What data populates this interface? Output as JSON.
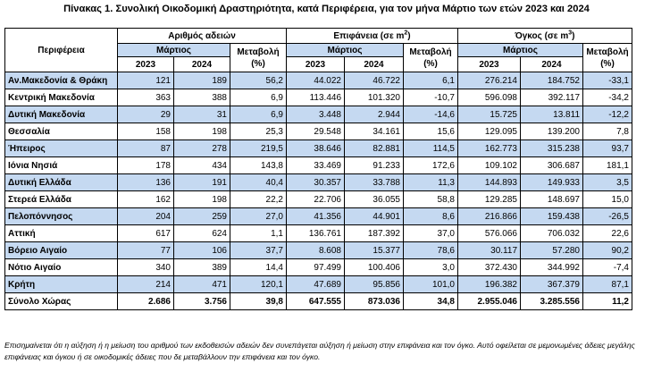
{
  "title": "Πίνακας 1. Συνολική Οικοδομική Δραστηριότητα, κατά  Περιφέρεια, για τον μήνα Μάρτιο των ετών 2023 και 2024",
  "headers": {
    "region": "Περιφέρεια",
    "permits": "Αριθμός αδειών",
    "area_prefix": "Επιφάνεια (σε m",
    "area_sup": "2",
    "area_suffix": ")",
    "volume_prefix": "Όγκος (σε m",
    "volume_sup": "3",
    "volume_suffix": ")",
    "month": "Μάρτιος",
    "change": "Μεταβολή",
    "change_unit": "(%)",
    "year1": "2023",
    "year2": "2024"
  },
  "rows": [
    {
      "region": "Αν.Μακεδονία & Θράκη",
      "p23": "121",
      "p24": "189",
      "pch": "56,2",
      "a23": "44.022",
      "a24": "46.722",
      "ach": "6,1",
      "v23": "276.214",
      "v24": "184.752",
      "vch": "-33,1"
    },
    {
      "region": "Κεντρική Μακεδονία",
      "p23": "363",
      "p24": "388",
      "pch": "6,9",
      "a23": "113.446",
      "a24": "101.320",
      "ach": "-10,7",
      "v23": "596.098",
      "v24": "392.117",
      "vch": "-34,2"
    },
    {
      "region": "Δυτική Μακεδονία",
      "p23": "29",
      "p24": "31",
      "pch": "6,9",
      "a23": "3.448",
      "a24": "2.944",
      "ach": "-14,6",
      "v23": "15.725",
      "v24": "13.811",
      "vch": "-12,2"
    },
    {
      "region": "Θεσσαλία",
      "p23": "158",
      "p24": "198",
      "pch": "25,3",
      "a23": "29.548",
      "a24": "34.161",
      "ach": "15,6",
      "v23": "129.095",
      "v24": "139.200",
      "vch": "7,8"
    },
    {
      "region": "Ήπειρος",
      "p23": "87",
      "p24": "278",
      "pch": "219,5",
      "a23": "38.646",
      "a24": "82.881",
      "ach": "114,5",
      "v23": "162.773",
      "v24": "315.238",
      "vch": "93,7"
    },
    {
      "region": "Ιόνια Νησιά",
      "p23": "178",
      "p24": "434",
      "pch": "143,8",
      "a23": "33.469",
      "a24": "91.233",
      "ach": "172,6",
      "v23": "109.102",
      "v24": "306.687",
      "vch": "181,1"
    },
    {
      "region": "Δυτική Ελλάδα",
      "p23": "136",
      "p24": "191",
      "pch": "40,4",
      "a23": "30.357",
      "a24": "33.788",
      "ach": "11,3",
      "v23": "144.893",
      "v24": "149.933",
      "vch": "3,5"
    },
    {
      "region": "Στερεά Ελλάδα",
      "p23": "162",
      "p24": "198",
      "pch": "22,2",
      "a23": "22.706",
      "a24": "36.055",
      "ach": "58,8",
      "v23": "129.285",
      "v24": "148.697",
      "vch": "15,0"
    },
    {
      "region": "Πελοπόννησος",
      "p23": "204",
      "p24": "259",
      "pch": "27,0",
      "a23": "41.356",
      "a24": "44.901",
      "ach": "8,6",
      "v23": "216.866",
      "v24": "159.438",
      "vch": "-26,5"
    },
    {
      "region": "Αττική",
      "p23": "617",
      "p24": "624",
      "pch": "1,1",
      "a23": "136.761",
      "a24": "187.392",
      "ach": "37,0",
      "v23": "576.066",
      "v24": "706.032",
      "vch": "22,6"
    },
    {
      "region": "Βόρειο Αιγαίο",
      "p23": "77",
      "p24": "106",
      "pch": "37,7",
      "a23": "8.608",
      "a24": "15.377",
      "ach": "78,6",
      "v23": "30.117",
      "v24": "57.280",
      "vch": "90,2"
    },
    {
      "region": "Νότιο Αιγαίο",
      "p23": "340",
      "p24": "389",
      "pch": "14,4",
      "a23": "97.499",
      "a24": "100.406",
      "ach": "3,0",
      "v23": "372.430",
      "v24": "344.992",
      "vch": "-7,4"
    },
    {
      "region": "Κρήτη",
      "p23": "214",
      "p24": "471",
      "pch": "120,1",
      "a23": "47.689",
      "a24": "95.856",
      "ach": "101,0",
      "v23": "196.382",
      "v24": "367.379",
      "vch": "87,1"
    }
  ],
  "total": {
    "region": "Σύνολο Χώρας",
    "p23": "2.686",
    "p24": "3.756",
    "pch": "39,8",
    "a23": "647.555",
    "a24": "873.036",
    "ach": "34,8",
    "v23": "2.955.046",
    "v24": "3.285.556",
    "vch": "11,2"
  },
  "note": "Επισημαίνεται ότι η αύξηση ή η μείωση του αριθμού των εκδοθεισών αδειών δεν συνεπάγεται αύξηση ή μείωση στην επιφάνεια και τον όγκο. Αυτό οφείλεται σε μεμονωμένες άδειες μεγάλης επιφάνειας και όγκου ή σε οικοδομικές άδειες που δε μεταβάλλουν την επιφάνεια και τον όγκο.",
  "colors": {
    "header_fill": "#c5d9f1",
    "alt_row_fill": "#c5d9f1"
  }
}
